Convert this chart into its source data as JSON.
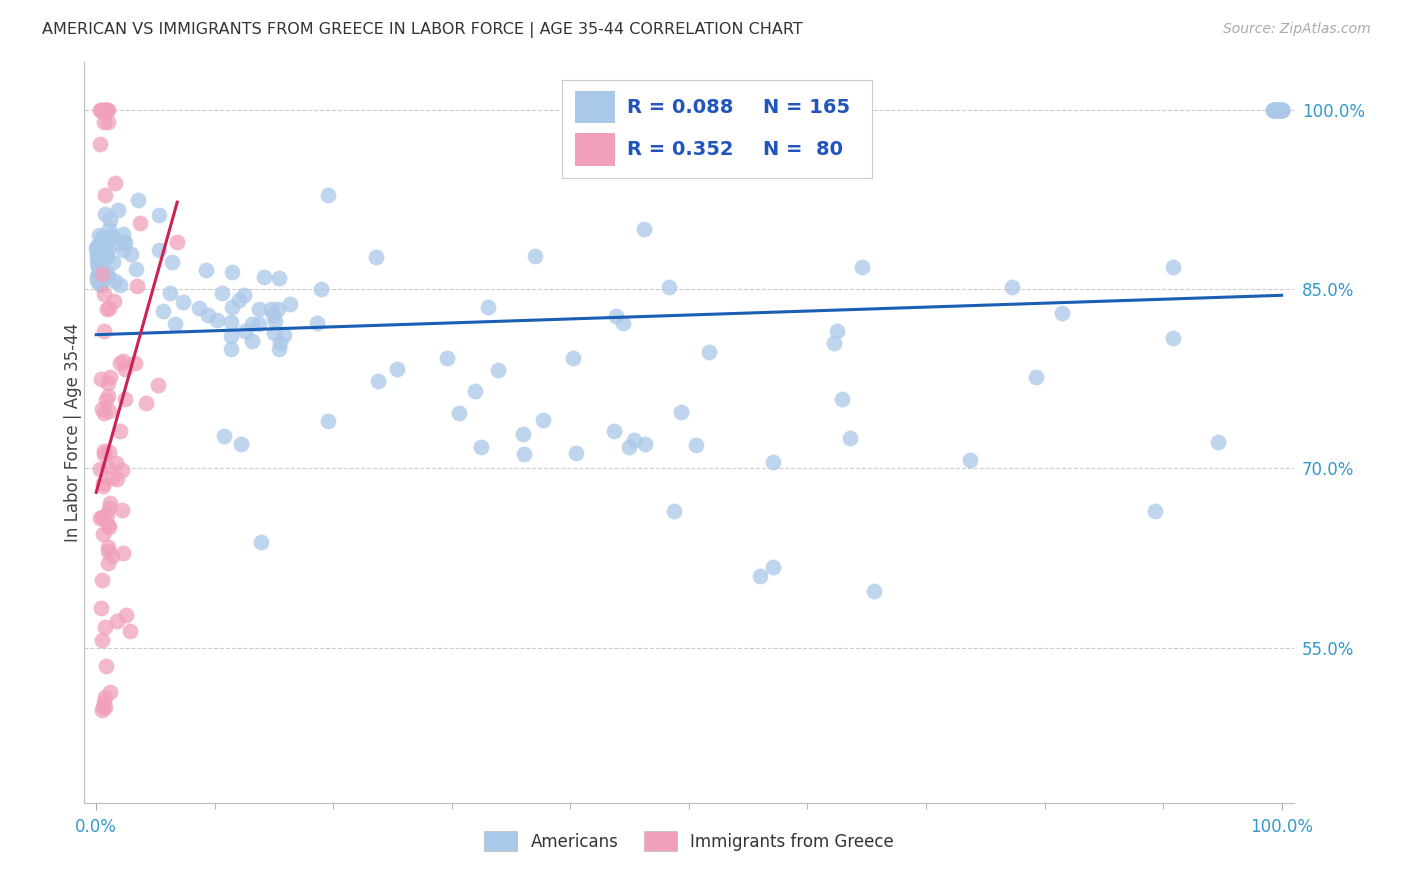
{
  "title": "AMERICAN VS IMMIGRANTS FROM GREECE IN LABOR FORCE | AGE 35-44 CORRELATION CHART",
  "source": "Source: ZipAtlas.com",
  "ylabel": "In Labor Force | Age 35-44",
  "legend_bottom": [
    "Americans",
    "Immigrants from Greece"
  ],
  "r_american": 0.088,
  "n_american": 165,
  "r_greek": 0.352,
  "n_greek": 80,
  "american_color": "#aac8e8",
  "greek_color": "#f0a0b8",
  "american_line_color": "#1a5fb4",
  "greek_line_color": "#cc2255",
  "background_color": "#ffffff",
  "grid_color": "#cccccc",
  "title_color": "#333333",
  "axis_tick_color": "#3399cc",
  "legend_text_color": "#2255bb",
  "xlim": [
    -0.01,
    1.01
  ],
  "ylim": [
    0.42,
    1.04
  ],
  "ytick_vals": [
    0.55,
    0.7,
    0.85,
    1.0
  ],
  "ytick_labels": [
    "55.0%",
    "70.0%",
    "85.0%",
    "100.0%"
  ],
  "xtick_edge_left": "0.0%",
  "xtick_edge_right": "100.0%"
}
